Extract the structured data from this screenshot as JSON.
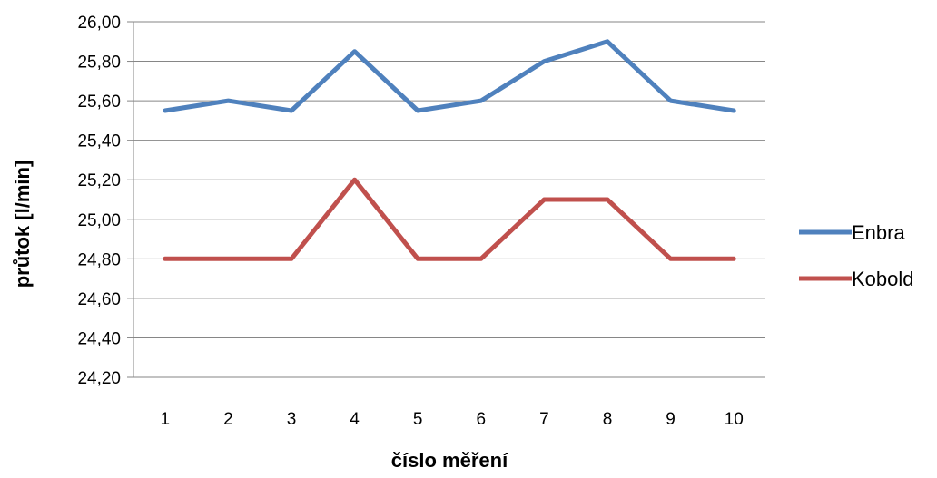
{
  "chart_data": {
    "type": "line",
    "title": "",
    "xlabel": "číslo měření",
    "ylabel": "průtok [l/min]",
    "categories": [
      "1",
      "2",
      "3",
      "4",
      "5",
      "6",
      "7",
      "8",
      "9",
      "10"
    ],
    "ylim": [
      24.2,
      26.0
    ],
    "ytick_labels": [
      "26,00",
      "25,80",
      "25,60",
      "25,40",
      "25,20",
      "25,00",
      "24,80",
      "24,60",
      "24,40",
      "24,20"
    ],
    "ytick_values": [
      26.0,
      25.8,
      25.6,
      25.4,
      25.2,
      25.0,
      24.8,
      24.6,
      24.4,
      24.2
    ],
    "grid": "horizontal",
    "legend_position": "right",
    "series": [
      {
        "name": "Enbra",
        "color": "#4f81bd",
        "values": [
          25.55,
          25.6,
          25.55,
          25.85,
          25.55,
          25.6,
          25.8,
          25.9,
          25.6,
          25.55
        ]
      },
      {
        "name": "Kobold",
        "color": "#c0504d",
        "values": [
          24.8,
          24.8,
          24.8,
          25.2,
          24.8,
          24.8,
          25.1,
          25.1,
          24.8,
          24.8
        ]
      }
    ]
  }
}
